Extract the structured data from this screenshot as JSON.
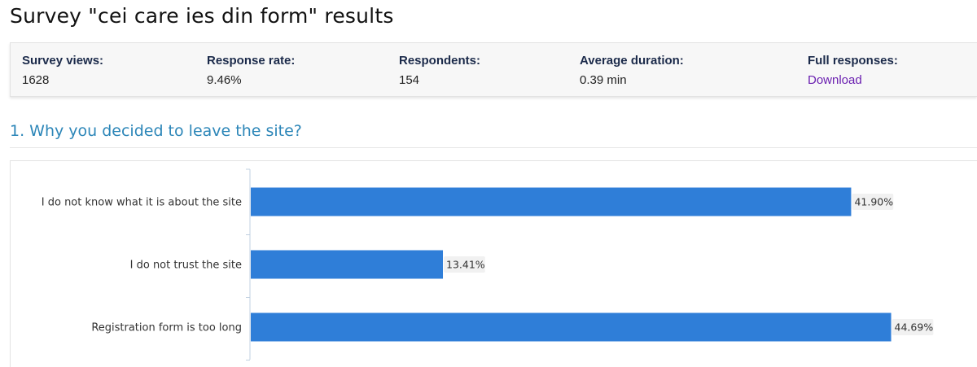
{
  "page": {
    "title": "Survey \"cei care ies din form\" results"
  },
  "stats": {
    "survey_views_label": "Survey views:",
    "survey_views_value": "1628",
    "response_rate_label": "Response rate:",
    "response_rate_value": "9.46%",
    "respondents_label": "Respondents:",
    "respondents_value": "154",
    "average_duration_label": "Average duration:",
    "average_duration_value": "0.39 min",
    "full_responses_label": "Full responses:",
    "full_responses_link": "Download"
  },
  "question": {
    "title": "1. Why you decided to leave the site?"
  },
  "colors": {
    "bar": "#2f7ed8",
    "label_bg": "#f1f1f1",
    "axis": "#c0d0e0",
    "question_title": "#2c86b8",
    "link": "#6a1fb0"
  },
  "chart_data": {
    "type": "bar",
    "orientation": "horizontal",
    "categories": [
      "I do not know what it is about the site",
      "I do not trust the site",
      "Registration form is too long"
    ],
    "values": [
      41.9,
      13.41,
      44.69
    ],
    "value_labels": [
      "41.90%",
      "13.41%",
      "44.69%"
    ],
    "xlim": [
      0,
      50
    ],
    "grid": false,
    "legend": "none"
  }
}
